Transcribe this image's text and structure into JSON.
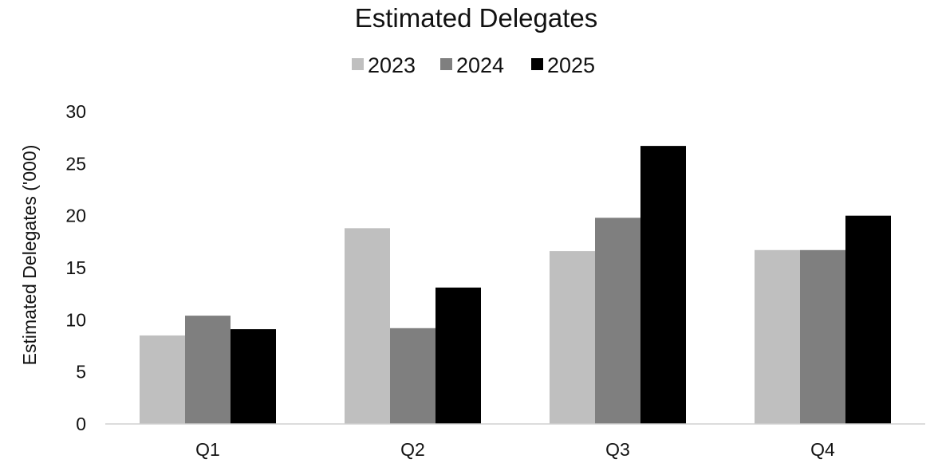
{
  "chart_data": {
    "type": "bar",
    "title": "Estimated Delegates",
    "xlabel": "",
    "ylabel": "Estimated Delegates ('000)",
    "categories": [
      "Q1",
      "Q2",
      "Q3",
      "Q4"
    ],
    "series": [
      {
        "name": "2023",
        "color": "#bfbfbf",
        "values": [
          8.5,
          18.8,
          16.6,
          16.7
        ]
      },
      {
        "name": "2024",
        "color": "#7f7f7f",
        "values": [
          10.4,
          9.2,
          19.8,
          16.7
        ]
      },
      {
        "name": "2025",
        "color": "#000000",
        "values": [
          9.1,
          13.1,
          26.7,
          20.0
        ]
      }
    ],
    "ylim": [
      0,
      30
    ],
    "yticks": [
      "0",
      "5",
      "10",
      "15",
      "20",
      "25",
      "30"
    ],
    "grid": false,
    "legend": "top-center"
  }
}
